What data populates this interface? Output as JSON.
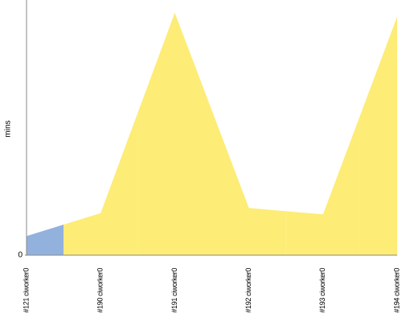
{
  "chart_data": {
    "type": "area",
    "y_label": "mins",
    "categories": [
      "#121 ciworker0",
      "#190 ciworker0",
      "#191 ciworker0",
      "#192 ciworker0",
      "#193 ciworker0",
      "#194 ciworker0"
    ],
    "values": [
      1.5,
      3.3,
      19.0,
      3.7,
      3.2,
      18.7
    ],
    "colors": [
      "#93b1dd",
      "#fdec76",
      "#fdec76",
      "#fdec76",
      "#fdec76",
      "#fdec76"
    ],
    "ylim": [
      0,
      20
    ],
    "yticks": [
      0
    ]
  }
}
